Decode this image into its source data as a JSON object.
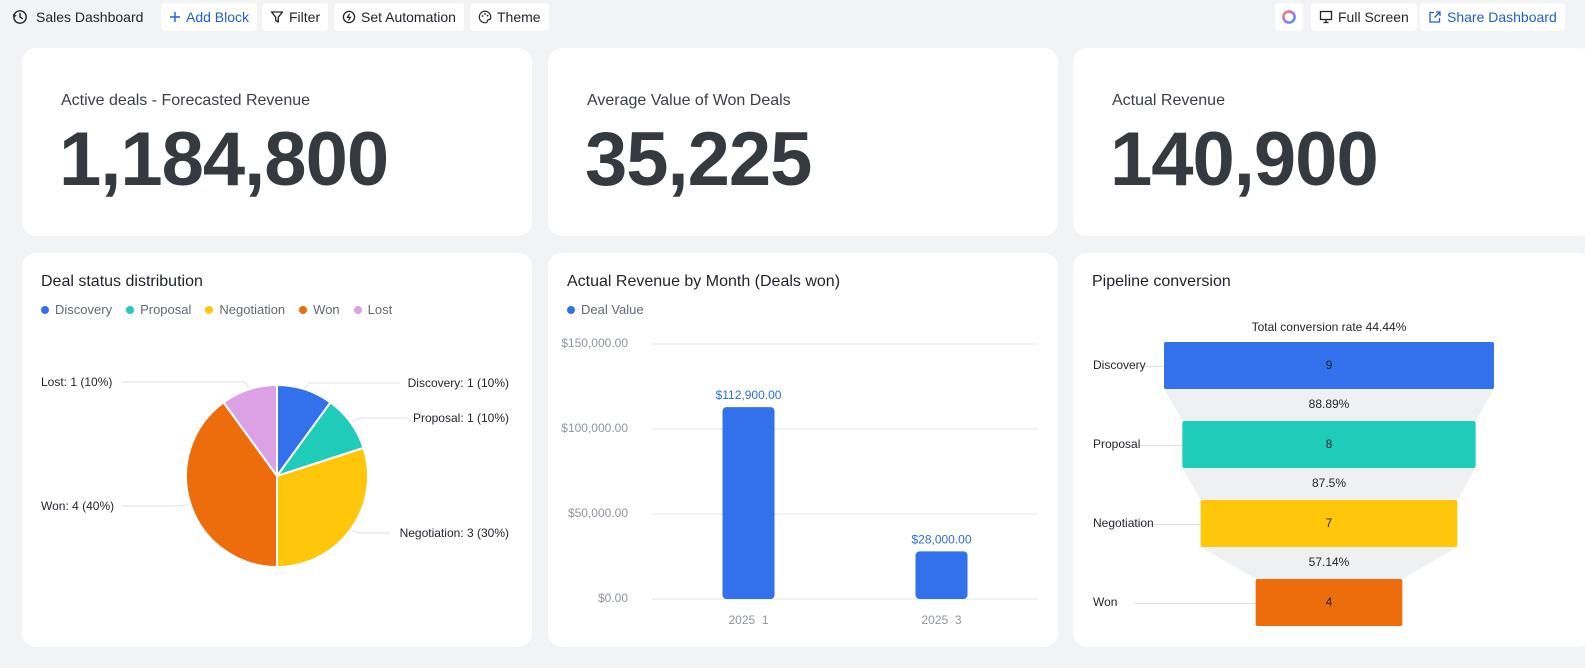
{
  "toolbar": {
    "title": "Sales Dashboard",
    "add_block": "Add Block",
    "filter": "Filter",
    "set_automation": "Set Automation",
    "theme": "Theme",
    "full_screen": "Full Screen",
    "share_dashboard": "Share Dashboard"
  },
  "kpis": [
    {
      "label": "Active deals - Forecasted Revenue",
      "value": "1,184,800"
    },
    {
      "label": "Average Value of Won Deals",
      "value": "35,225"
    },
    {
      "label": "Actual Revenue",
      "value": "140,900"
    }
  ],
  "colors": {
    "discovery": "#3370eb",
    "proposal": "#1fcbb9",
    "negotiation": "#ffc60a",
    "won": "#ed6d0c",
    "lost": "#dca1e4",
    "bar": "#3370eb",
    "bar_label": "#2a6fd6"
  },
  "chart_data": [
    {
      "type": "pie",
      "title": "Deal status distribution",
      "legend": [
        "Discovery",
        "Proposal",
        "Negotiation",
        "Won",
        "Lost"
      ],
      "categories": [
        "Discovery",
        "Proposal",
        "Negotiation",
        "Won",
        "Lost"
      ],
      "values": [
        1,
        1,
        3,
        4,
        1
      ],
      "labels": [
        "Discovery: 1 (10%)",
        "Proposal: 1 (10%)",
        "Negotiation: 3 (30%)",
        "Won: 4 (40%)",
        "Lost: 1 (10%)"
      ]
    },
    {
      "type": "bar",
      "title": "Actual Revenue by Month (Deals won)",
      "legend": [
        "Deal Value"
      ],
      "categories": [
        "2025  1",
        "2025  3"
      ],
      "values": [
        112900,
        28000
      ],
      "value_labels": [
        "$112,900.00",
        "$28,000.00"
      ],
      "yticks": [
        "$0.00",
        "$50,000.00",
        "$100,000.00",
        "$150,000.00"
      ],
      "ylim": [
        0,
        150000
      ]
    },
    {
      "type": "funnel",
      "title": "Pipeline conversion",
      "subtitle": "Total conversion rate 44.44%",
      "stages": [
        "Discovery",
        "Proposal",
        "Negotiation",
        "Won"
      ],
      "values": [
        9,
        8,
        7,
        4
      ],
      "value_labels": [
        "9",
        "8",
        "7",
        "4"
      ],
      "conversion_labels": [
        "88.89%",
        "87.5%",
        "57.14%"
      ]
    }
  ]
}
